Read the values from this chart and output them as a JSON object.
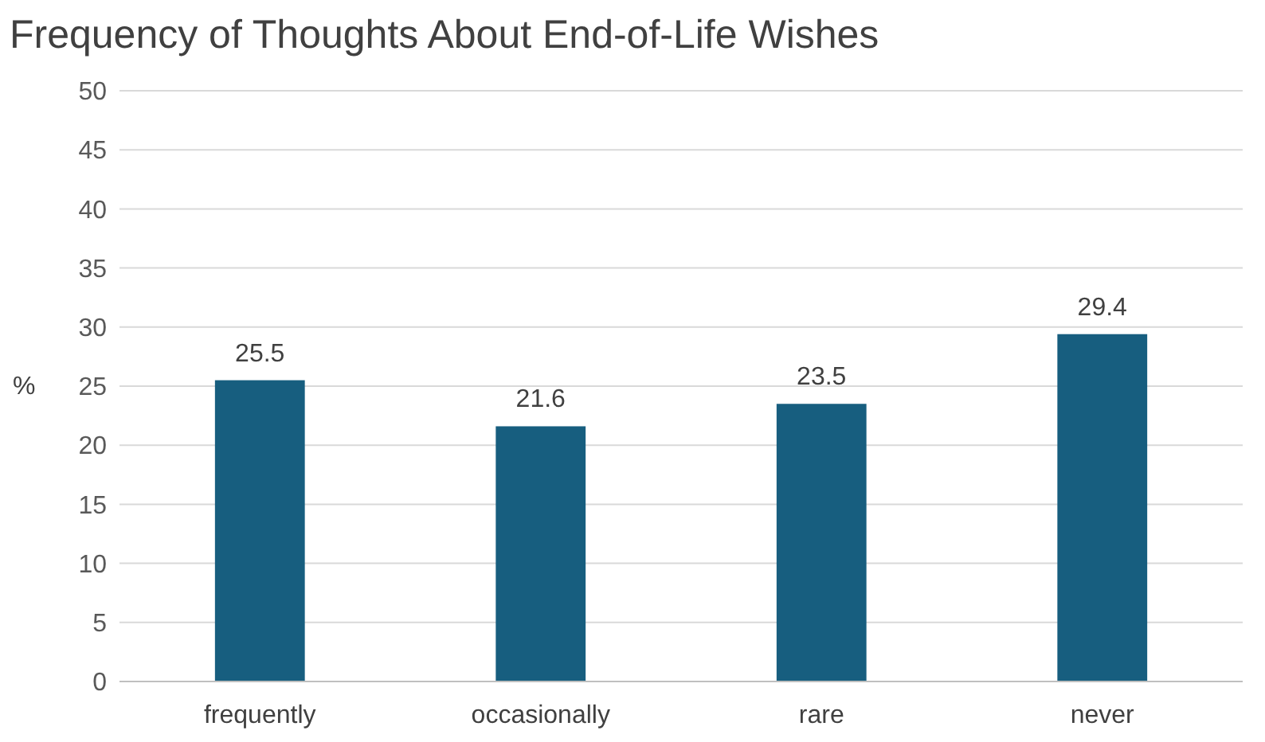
{
  "chart_data": {
    "type": "bar",
    "title": "Frequency of Thoughts About End-of-Life Wishes",
    "ylabel": "%",
    "categories": [
      "frequently",
      "occasionally",
      "rare",
      "never"
    ],
    "values": [
      25.5,
      21.6,
      23.5,
      29.4
    ],
    "color": "#175e7f",
    "ylim": [
      0,
      50
    ],
    "yticks": [
      0,
      5,
      10,
      15,
      20,
      25,
      30,
      35,
      40,
      45,
      50
    ],
    "grid": "y",
    "data_labels": true
  }
}
